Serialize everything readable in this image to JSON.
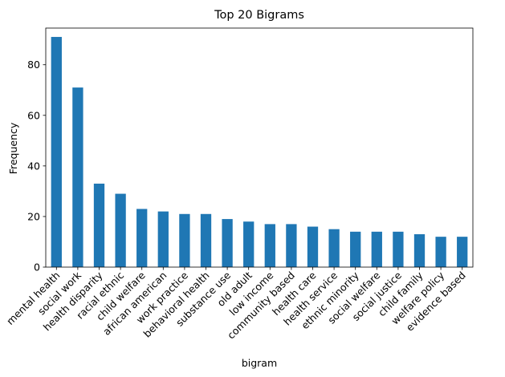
{
  "chart_data": {
    "type": "bar",
    "title": "Top 20 Bigrams",
    "xlabel": "bigram",
    "ylabel": "Frequency",
    "ylim": [
      0,
      94.5
    ],
    "yticks": [
      0,
      20,
      40,
      60,
      80
    ],
    "grid": false,
    "bar_color": "#1f77b4",
    "categories": [
      "mental health",
      "social work",
      "health disparity",
      "racial ethnic",
      "child welfare",
      "african american",
      "work practice",
      "behavioral health",
      "substance use",
      "old adult",
      "low income",
      "community based",
      "health care",
      "health service",
      "ethnic minority",
      "social welfare",
      "social justice",
      "child family",
      "welfare policy",
      "evidence based"
    ],
    "values": [
      91,
      71,
      33,
      29,
      23,
      22,
      21,
      21,
      19,
      18,
      17,
      17,
      16,
      15,
      14,
      14,
      14,
      13,
      12,
      12
    ]
  }
}
